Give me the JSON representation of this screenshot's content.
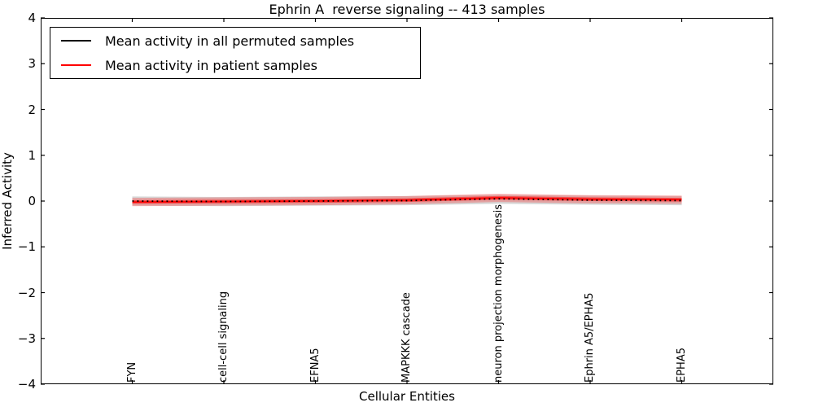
{
  "chart_data": {
    "type": "line",
    "title": "Ephrin A  reverse signaling -- 413 samples",
    "xlabel": "Cellular Entities",
    "ylabel": "Inferred Activity",
    "ylim": [
      -4,
      4
    ],
    "grid": false,
    "legend_position": "upper left",
    "yticks": [
      {
        "label": "4",
        "value": 4
      },
      {
        "label": "3",
        "value": 3
      },
      {
        "label": "2",
        "value": 2
      },
      {
        "label": "1",
        "value": 1
      },
      {
        "label": "0",
        "value": 0
      },
      {
        "label": "−1",
        "value": -1
      },
      {
        "label": "−2",
        "value": -2
      },
      {
        "label": "−3",
        "value": -3
      },
      {
        "label": "−4",
        "value": -4
      }
    ],
    "categories": [
      "FYN",
      "cell-cell signaling",
      "EFNA5",
      "MAPKKK cascade",
      "neuron projection morphogenesis",
      "Ephrin A5/EPHA5",
      "EPHA5"
    ],
    "bands": [
      {
        "name": "permuted-samples-std-band",
        "fill": "rgba(90,90,90,0.25)",
        "upper": [
          0.1,
          0.09,
          0.1,
          0.11,
          0.14,
          0.12,
          0.11
        ],
        "lower": [
          -0.1,
          -0.11,
          -0.1,
          -0.09,
          -0.06,
          -0.08,
          -0.09
        ]
      },
      {
        "name": "patient-samples-outer-band",
        "fill": "rgba(255,40,40,0.30)",
        "upper": [
          0.07,
          0.08,
          0.09,
          0.11,
          0.16,
          0.13,
          0.12
        ],
        "lower": [
          -0.11,
          -0.1,
          -0.09,
          -0.07,
          -0.02,
          -0.05,
          -0.06
        ]
      },
      {
        "name": "patient-samples-inner-band",
        "fill": "rgba(255,0,0,0.50)",
        "upper": [
          0.02,
          0.03,
          0.04,
          0.06,
          0.11,
          0.08,
          0.07
        ],
        "lower": [
          -0.06,
          -0.05,
          -0.04,
          -0.02,
          0.03,
          0.0,
          -0.01
        ]
      }
    ],
    "series": [
      {
        "name": "Mean activity in all permuted samples",
        "color": "#000000",
        "style": "dotted",
        "width": 1.8,
        "values": [
          0.0,
          -0.01,
          0.0,
          0.01,
          0.05,
          0.02,
          0.01
        ]
      },
      {
        "name": "Mean activity in patient samples",
        "color": "#ff0000",
        "style": "solid",
        "width": 1.8,
        "values": [
          -0.02,
          -0.01,
          0.0,
          0.02,
          0.07,
          0.04,
          0.03
        ]
      }
    ]
  }
}
